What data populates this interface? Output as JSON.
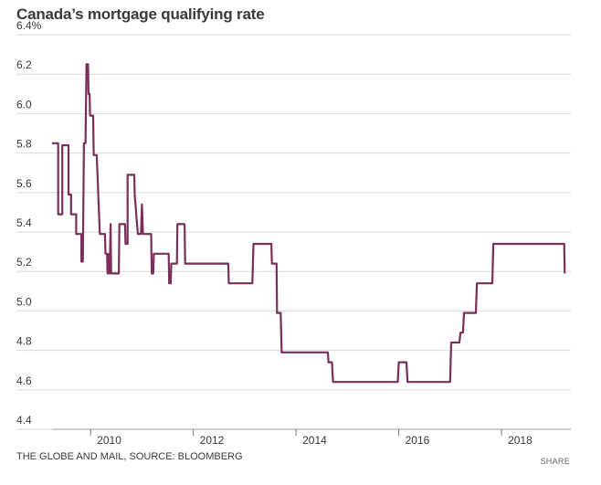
{
  "header": {
    "title": "Canada’s mortgage qualifying rate"
  },
  "footer": {
    "source": "THE GLOBE AND MAIL, SOURCE: BLOOMBERG",
    "share_label": "SHARE"
  },
  "colors": {
    "line": "#7a2f5a",
    "grid": "#d9d9d9"
  },
  "chart_data": {
    "type": "line",
    "title": "Canada’s mortgage qualifying rate",
    "xlabel": "",
    "ylabel": "",
    "ylim": [
      4.4,
      6.4
    ],
    "xlim": [
      2009.25,
      2019.35
    ],
    "y_ticks": [
      {
        "value": 6.4,
        "label": "6.4%"
      },
      {
        "value": 6.2,
        "label": "6.2"
      },
      {
        "value": 6.0,
        "label": "6.0"
      },
      {
        "value": 5.8,
        "label": "5.8"
      },
      {
        "value": 5.6,
        "label": "5.6"
      },
      {
        "value": 5.4,
        "label": "5.4"
      },
      {
        "value": 5.2,
        "label": "5.2"
      },
      {
        "value": 5.0,
        "label": "5.0"
      },
      {
        "value": 4.8,
        "label": "4.8"
      },
      {
        "value": 4.6,
        "label": "4.6"
      },
      {
        "value": 4.4,
        "label": "4.4"
      }
    ],
    "x_ticks": [
      {
        "value": 2010,
        "label": "2010"
      },
      {
        "value": 2012,
        "label": "2012"
      },
      {
        "value": 2014,
        "label": "2014"
      },
      {
        "value": 2016,
        "label": "2016"
      },
      {
        "value": 2018,
        "label": "2018"
      }
    ],
    "series": [
      {
        "name": "Qualifying rate",
        "points": [
          [
            2009.25,
            5.85
          ],
          [
            2009.37,
            5.85
          ],
          [
            2009.37,
            5.49
          ],
          [
            2009.45,
            5.49
          ],
          [
            2009.45,
            5.84
          ],
          [
            2009.57,
            5.84
          ],
          [
            2009.57,
            5.59
          ],
          [
            2009.62,
            5.59
          ],
          [
            2009.62,
            5.49
          ],
          [
            2009.72,
            5.49
          ],
          [
            2009.72,
            5.39
          ],
          [
            2009.82,
            5.39
          ],
          [
            2009.82,
            5.25
          ],
          [
            2009.85,
            5.25
          ],
          [
            2009.87,
            5.85
          ],
          [
            2009.9,
            5.85
          ],
          [
            2009.92,
            6.25
          ],
          [
            2009.95,
            6.25
          ],
          [
            2009.96,
            6.1
          ],
          [
            2009.98,
            6.1
          ],
          [
            2009.99,
            5.99
          ],
          [
            2010.05,
            5.99
          ],
          [
            2010.06,
            5.79
          ],
          [
            2010.12,
            5.79
          ],
          [
            2010.18,
            5.39
          ],
          [
            2010.28,
            5.39
          ],
          [
            2010.29,
            5.29
          ],
          [
            2010.32,
            5.29
          ],
          [
            2010.33,
            5.19
          ],
          [
            2010.35,
            5.19
          ],
          [
            2010.36,
            5.29
          ],
          [
            2010.37,
            5.19
          ],
          [
            2010.39,
            5.44
          ],
          [
            2010.4,
            5.19
          ],
          [
            2010.55,
            5.19
          ],
          [
            2010.56,
            5.44
          ],
          [
            2010.67,
            5.44
          ],
          [
            2010.68,
            5.34
          ],
          [
            2010.72,
            5.34
          ],
          [
            2010.72,
            5.69
          ],
          [
            2010.85,
            5.69
          ],
          [
            2010.86,
            5.59
          ],
          [
            2010.92,
            5.39
          ],
          [
            2010.98,
            5.39
          ],
          [
            2011.0,
            5.54
          ],
          [
            2011.02,
            5.39
          ],
          [
            2011.18,
            5.39
          ],
          [
            2011.19,
            5.19
          ],
          [
            2011.22,
            5.19
          ],
          [
            2011.23,
            5.29
          ],
          [
            2011.52,
            5.29
          ],
          [
            2011.53,
            5.14
          ],
          [
            2011.56,
            5.14
          ],
          [
            2011.57,
            5.24
          ],
          [
            2011.68,
            5.24
          ],
          [
            2011.69,
            5.44
          ],
          [
            2011.83,
            5.44
          ],
          [
            2011.84,
            5.24
          ],
          [
            2012.68,
            5.24
          ],
          [
            2012.69,
            5.14
          ],
          [
            2013.15,
            5.14
          ],
          [
            2013.17,
            5.34
          ],
          [
            2013.52,
            5.34
          ],
          [
            2013.53,
            5.24
          ],
          [
            2013.62,
            5.24
          ],
          [
            2013.63,
            4.99
          ],
          [
            2013.7,
            4.99
          ],
          [
            2013.72,
            4.79
          ],
          [
            2014.62,
            4.79
          ],
          [
            2014.63,
            4.74
          ],
          [
            2014.7,
            4.74
          ],
          [
            2014.72,
            4.64
          ],
          [
            2015.98,
            4.64
          ],
          [
            2016.0,
            4.74
          ],
          [
            2016.15,
            4.74
          ],
          [
            2016.17,
            4.64
          ],
          [
            2017.0,
            4.64
          ],
          [
            2017.02,
            4.84
          ],
          [
            2017.18,
            4.84
          ],
          [
            2017.2,
            4.89
          ],
          [
            2017.25,
            4.89
          ],
          [
            2017.27,
            4.99
          ],
          [
            2017.5,
            4.99
          ],
          [
            2017.52,
            5.14
          ],
          [
            2017.82,
            5.14
          ],
          [
            2017.84,
            5.34
          ],
          [
            2019.22,
            5.34
          ],
          [
            2019.23,
            5.19
          ]
        ]
      }
    ]
  }
}
